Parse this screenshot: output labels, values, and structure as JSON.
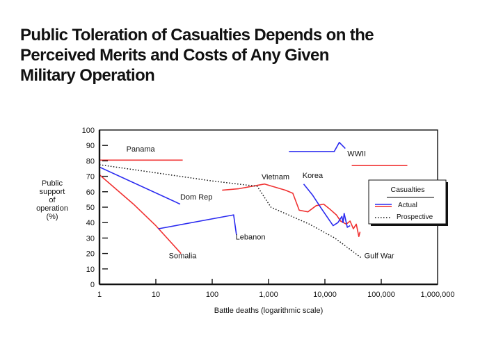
{
  "title_lines": [
    "Public Toleration of Casualties Depends on the",
    "Perceived Merits and Costs of Any Given",
    "Military Operation"
  ],
  "chart_data": {
    "type": "line",
    "title": "Public Toleration of Casualties Depends on the Perceived Merits and Costs of Any Given Military Operation",
    "xlabel": "Battle deaths (logarithmic scale)",
    "ylabel_lines": [
      "Public",
      "support",
      "of",
      "operation",
      "(%)"
    ],
    "ylabel": "Public support of operation (%)",
    "xscale": "log",
    "xlim": [
      1,
      1000000
    ],
    "ylim": [
      0,
      100
    ],
    "x_ticks": [
      1,
      10,
      100,
      1000,
      10000,
      100000,
      1000000
    ],
    "x_tick_labels": [
      "1",
      "10",
      "100",
      "1,000",
      "10,000",
      "100,000",
      "1,000,000"
    ],
    "y_ticks": [
      0,
      10,
      20,
      30,
      40,
      50,
      60,
      70,
      80,
      90,
      100
    ],
    "y_tick_labels": [
      "0",
      "10",
      "20",
      "30",
      "40",
      "50",
      "60",
      "70",
      "80",
      "90",
      "100"
    ],
    "grid": false,
    "legend": {
      "title": "Casualties",
      "placement": "right",
      "entries": [
        {
          "label": "Actual",
          "style": "solid",
          "colors": [
            "#2a2af0",
            "#f02a2a"
          ]
        },
        {
          "label": "Prospective",
          "style": "dotted",
          "colors": [
            "#111111"
          ]
        }
      ]
    },
    "series": [
      {
        "name": "Panama",
        "kind": "actual",
        "color": "#f03030",
        "points": [
          [
            1,
            80.5
          ],
          [
            30,
            80.5
          ]
        ]
      },
      {
        "name": "Dom Rep",
        "kind": "actual",
        "color": "#2a2af0",
        "points": [
          [
            1,
            76
          ],
          [
            27,
            52
          ]
        ]
      },
      {
        "name": "Somalia",
        "kind": "actual",
        "color": "#f03030",
        "points": [
          [
            1,
            71
          ],
          [
            4,
            52
          ],
          [
            10,
            38
          ],
          [
            28,
            20
          ]
        ]
      },
      {
        "name": "Lebanon",
        "kind": "actual",
        "color": "#2a2af0",
        "points": [
          [
            11,
            36
          ],
          [
            240,
            45
          ],
          [
            270,
            32
          ]
        ]
      },
      {
        "name": "Vietnam",
        "kind": "actual",
        "color": "#f03030",
        "points": [
          [
            150,
            61
          ],
          [
            300,
            62
          ],
          [
            850,
            65
          ],
          [
            2000,
            61
          ],
          [
            2700,
            59
          ],
          [
            3500,
            48
          ],
          [
            5000,
            47
          ],
          [
            7000,
            51
          ],
          [
            9500,
            52
          ],
          [
            12000,
            49
          ],
          [
            16000,
            45
          ],
          [
            19000,
            41
          ],
          [
            24000,
            39
          ],
          [
            28000,
            41
          ],
          [
            32000,
            36
          ],
          [
            36000,
            39
          ],
          [
            40000,
            31
          ],
          [
            42000,
            34
          ]
        ]
      },
      {
        "name": "Korea",
        "kind": "actual",
        "color": "#2a2af0",
        "points": [
          [
            4200,
            65
          ],
          [
            6000,
            58
          ],
          [
            8700,
            49
          ],
          [
            14000,
            38
          ],
          [
            17000,
            40
          ],
          [
            20000,
            44
          ],
          [
            21000,
            40
          ],
          [
            22000,
            46
          ],
          [
            25000,
            37
          ],
          [
            28000,
            38
          ]
        ]
      },
      {
        "name": "WWII",
        "kind": "actual",
        "color": "#2a2af0",
        "points": [
          [
            2300,
            86
          ],
          [
            14600,
            86
          ],
          [
            18000,
            92
          ],
          [
            23000,
            88
          ]
        ]
      },
      {
        "name": "WWII (later)",
        "kind": "actual",
        "color": "#f03030",
        "points": [
          [
            30000,
            77
          ],
          [
            290000,
            77
          ]
        ]
      },
      {
        "name": "Prospective",
        "kind": "prospective",
        "color": "#111111",
        "points": [
          [
            1,
            77.5
          ],
          [
            100,
            67
          ],
          [
            630,
            63.5
          ],
          [
            1100,
            50
          ],
          [
            5300,
            39
          ],
          [
            15000,
            30
          ],
          [
            45000,
            17
          ]
        ]
      }
    ],
    "annotations": [
      {
        "text": "Panama",
        "x": 3,
        "y": 86
      },
      {
        "text": "Dom Rep",
        "x": 27,
        "y": 55
      },
      {
        "text": "Somalia",
        "x": 17,
        "y": 17
      },
      {
        "text": "Lebanon",
        "x": 260,
        "y": 29
      },
      {
        "text": "Vietnam",
        "x": 750,
        "y": 68
      },
      {
        "text": "Korea",
        "x": 4000,
        "y": 69
      },
      {
        "text": "WWII",
        "x": 25000,
        "y": 83
      },
      {
        "text": "Gulf War",
        "x": 50000,
        "y": 17
      }
    ]
  }
}
